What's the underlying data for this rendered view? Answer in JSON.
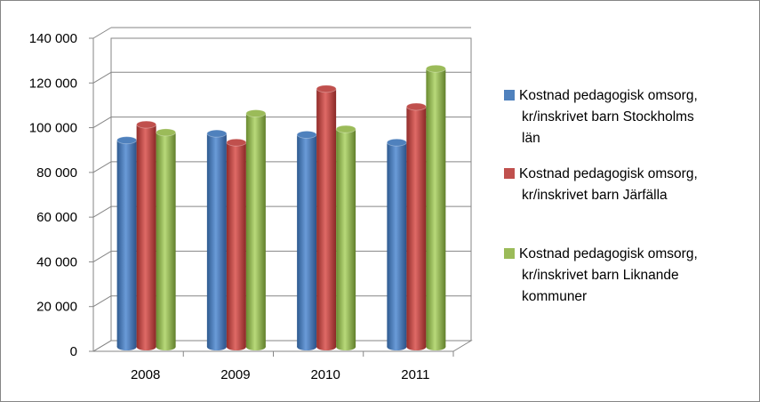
{
  "chart_data": {
    "type": "bar",
    "title": "",
    "xlabel": "",
    "ylabel": "",
    "categories": [
      "2008",
      "2009",
      "2010",
      "2011"
    ],
    "ylim": [
      0,
      140000
    ],
    "yticks": [
      0,
      20000,
      40000,
      60000,
      80000,
      100000,
      120000,
      140000
    ],
    "ytick_labels": [
      "0",
      "20 000",
      "40 000",
      "60 000",
      "80 000",
      "100 000",
      "120 000",
      "140 000"
    ],
    "grid": true,
    "legend_position": "right",
    "series": [
      {
        "name_lines": [
          "Kostnad pedagogisk omsorg,",
          "kr/inskrivet barn  Stockholms",
          "län"
        ],
        "color": "#4f81bd",
        "values": [
          92000,
          95000,
          94500,
          91000
        ]
      },
      {
        "name_lines": [
          "Kostnad pedagogisk omsorg,",
          "kr/inskrivet barn  Järfälla"
        ],
        "color": "#c0504d",
        "values": [
          99000,
          91000,
          115000,
          107000
        ]
      },
      {
        "name_lines": [
          "Kostnad pedagogisk omsorg,",
          "kr/inskrivet barn Liknande",
          "kommuner"
        ],
        "color": "#9bbb59",
        "values": [
          95500,
          104000,
          97000,
          124000
        ]
      }
    ]
  }
}
